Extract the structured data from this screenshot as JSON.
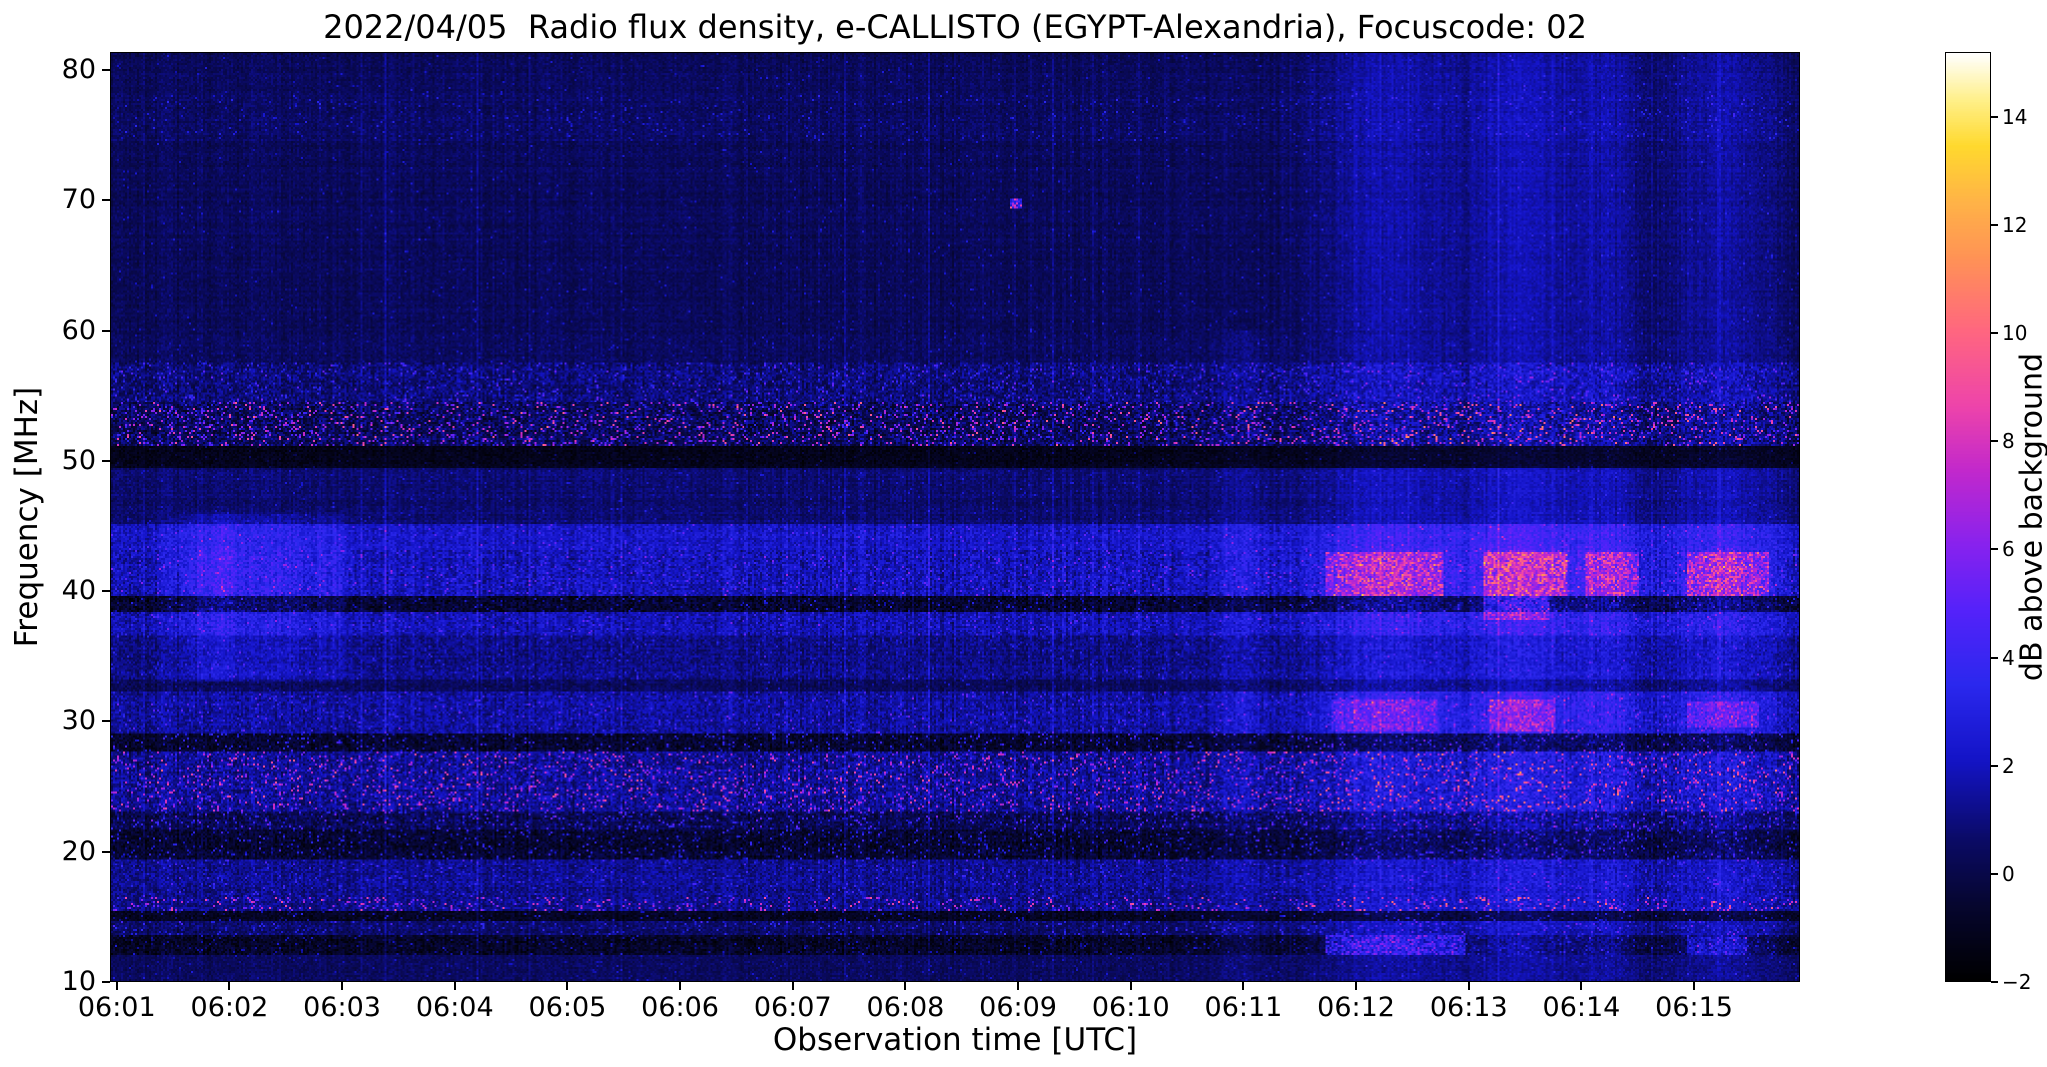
{
  "chart_data": {
    "type": "heatmap",
    "title": "2022/04/05  Radio flux density, e-CALLISTO (EGYPT-Alexandria), Focuscode: 02",
    "xlabel": "Observation time [UTC]",
    "ylabel": "Frequency [MHz]",
    "colorbar_label": "dB above background",
    "x_tick_labels": [
      "06:01",
      "06:02",
      "06:03",
      "06:04",
      "06:05",
      "06:06",
      "06:07",
      "06:08",
      "06:09",
      "06:10",
      "06:11",
      "06:12",
      "06:13",
      "06:14",
      "06:15"
    ],
    "x_tick_minutes": [
      1,
      2,
      3,
      4,
      5,
      6,
      7,
      8,
      9,
      10,
      11,
      12,
      13,
      14,
      15
    ],
    "x_axis_start_minutes_after_0600": 0.94,
    "x_axis_span_minutes": 15,
    "y_tick_values": [
      10,
      20,
      30,
      40,
      50,
      60,
      70,
      80
    ],
    "freq_range_mhz": [
      10,
      81.4
    ],
    "value_range_db": [
      -2,
      15.2
    ],
    "colorbar_tick_values": [
      -2,
      0,
      2,
      4,
      6,
      8,
      10,
      12,
      14
    ],
    "colorbar_tick_labels": [
      "−2",
      "0",
      "2",
      "4",
      "6",
      "8",
      "10",
      "12",
      "14"
    ],
    "colormap": "gnuplot2-like (black-blue-violet-pink-orange-yellow-white)",
    "colormap_stops": [
      [
        0.0,
        "#000000"
      ],
      [
        0.08,
        "#06062e"
      ],
      [
        0.15,
        "#0a0a64"
      ],
      [
        0.24,
        "#1414c8"
      ],
      [
        0.32,
        "#2b28ee"
      ],
      [
        0.4,
        "#5522fa"
      ],
      [
        0.47,
        "#8822ee"
      ],
      [
        0.55,
        "#c228cc"
      ],
      [
        0.62,
        "#ee44aa"
      ],
      [
        0.7,
        "#ff6680"
      ],
      [
        0.78,
        "#ff9355"
      ],
      [
        0.84,
        "#ffb347"
      ],
      [
        0.9,
        "#ffd92e"
      ],
      [
        0.95,
        "#fff08a"
      ],
      [
        1.0,
        "#ffffff"
      ]
    ],
    "render_seed": 1337,
    "grid_cols": 845,
    "grid_rows": 465,
    "bands": [
      {
        "f": [
          10.0,
          12.0
        ],
        "base": 0.4,
        "noise": 0.5,
        "sp": 0.02,
        "spmax": 2.0,
        "sens": 0.6,
        "ev": 0.8
      },
      {
        "f": [
          12.0,
          13.6
        ],
        "base": -0.8,
        "noise": 0.8,
        "sp": 0.05,
        "spmax": 3.0,
        "sens": 0.8,
        "ev": 1.6
      },
      {
        "f": [
          13.6,
          14.6
        ],
        "base": 0.6,
        "noise": 0.7,
        "sp": 0.06,
        "spmax": 3.5,
        "sens": 0.8,
        "ev": 1.2
      },
      {
        "f": [
          14.6,
          15.4
        ],
        "base": -1.0,
        "noise": 0.6,
        "sp": 0.05,
        "spmax": 4.0,
        "sens": 0.6,
        "ev": 0.8
      },
      {
        "f": [
          15.4,
          16.4
        ],
        "base": 1.2,
        "noise": 0.9,
        "sp": 0.1,
        "spmax": 7.5,
        "sens": 0.8,
        "ev": 1.0
      },
      {
        "f": [
          16.4,
          19.4
        ],
        "base": 1.2,
        "noise": 0.8,
        "sp": 0.05,
        "spmax": 3.0,
        "sens": 1.0,
        "ev": 1.0
      },
      {
        "f": [
          19.4,
          21.6
        ],
        "base": -0.6,
        "noise": 0.9,
        "sp": 0.08,
        "spmax": 4.5,
        "sens": 0.8,
        "ev": 1.0
      },
      {
        "f": [
          21.6,
          23.0
        ],
        "base": 0.2,
        "noise": 1.0,
        "sp": 0.08,
        "spmax": 5.0,
        "sens": 1.0,
        "ev": 1.0
      },
      {
        "f": [
          23.0,
          27.6
        ],
        "base": 1.3,
        "noise": 1.1,
        "sp": 0.1,
        "spmax": 7.5,
        "sens": 1.2,
        "ev": 1.2
      },
      {
        "f": [
          27.6,
          29.0
        ],
        "base": -0.7,
        "noise": 0.9,
        "sp": 0.07,
        "spmax": 5.0,
        "sens": 0.9,
        "ev": 1.0
      },
      {
        "f": [
          29.0,
          32.2
        ],
        "base": 1.5,
        "noise": 0.9,
        "sp": 0.04,
        "spmax": 3.5,
        "sens": 1.2,
        "ev": 1.8
      },
      {
        "f": [
          32.2,
          33.2
        ],
        "base": 0.3,
        "noise": 0.6,
        "sp": 0.02,
        "spmax": 2.0,
        "sens": 0.8,
        "ev": 1.0
      },
      {
        "f": [
          33.2,
          36.6
        ],
        "base": 1.1,
        "noise": 0.8,
        "sp": 0.03,
        "spmax": 2.5,
        "sens": 1.0,
        "ev": 1.2
      },
      {
        "f": [
          36.6,
          38.4
        ],
        "base": 1.8,
        "noise": 0.9,
        "sp": 0.04,
        "spmax": 3.0,
        "sens": 1.4,
        "ev": 1.5
      },
      {
        "f": [
          38.4,
          39.6
        ],
        "base": -0.6,
        "noise": 1.0,
        "sp": 0.05,
        "spmax": 3.5,
        "sens": 1.0,
        "ev": 1.5
      },
      {
        "f": [
          39.6,
          43.2
        ],
        "base": 1.9,
        "noise": 1.0,
        "sp": 0.05,
        "spmax": 3.5,
        "sens": 1.5,
        "ev": 2.0
      },
      {
        "f": [
          43.2,
          45.2
        ],
        "base": 2.2,
        "noise": 0.8,
        "sp": 0.03,
        "spmax": 3.0,
        "sens": 1.3,
        "ev": 1.5
      },
      {
        "f": [
          45.2,
          49.4
        ],
        "base": 0.7,
        "noise": 0.5,
        "sp": 0.02,
        "spmax": 2.0,
        "sens": 0.9,
        "ev": 1.0
      },
      {
        "f": [
          49.4,
          51.2
        ],
        "base": -1.2,
        "noise": 0.5,
        "sp": 0.02,
        "spmax": 2.0,
        "sens": 0.4,
        "ev": 0.5
      },
      {
        "f": [
          51.2,
          54.6
        ],
        "base": 0.3,
        "noise": 1.3,
        "sp": 0.12,
        "spmax": 8.5,
        "sens": 0.8,
        "ev": 1.0
      },
      {
        "f": [
          54.6,
          57.6
        ],
        "base": 0.8,
        "noise": 1.0,
        "sp": 0.07,
        "spmax": 4.0,
        "sens": 0.9,
        "ev": 1.0
      },
      {
        "f": [
          57.6,
          60.0
        ],
        "base": 0.4,
        "noise": 0.5,
        "sp": 0.02,
        "spmax": 2.0,
        "sens": 0.8,
        "ev": 0.9
      },
      {
        "f": [
          60.0,
          74.6
        ],
        "base": 0.35,
        "noise": 0.45,
        "sp": 0.012,
        "spmax": 2.2,
        "sens": 0.8,
        "ev": 1.0
      },
      {
        "f": [
          74.6,
          78.2
        ],
        "base": 0.5,
        "noise": 0.5,
        "sp": 0.035,
        "spmax": 2.6,
        "sens": 0.85,
        "ev": 1.0
      },
      {
        "f": [
          78.2,
          81.4
        ],
        "base": 0.35,
        "noise": 0.45,
        "sp": 0.012,
        "spmax": 2.2,
        "sens": 0.8,
        "ev": 1.0
      }
    ],
    "vertical_events": [
      {
        "t": 1.9,
        "w": 0.25,
        "boost": 1.2,
        "f": [
          33,
          46
        ]
      },
      {
        "t": 2.5,
        "w": 0.15,
        "boost": 0.8,
        "f": [
          33,
          46
        ]
      },
      {
        "t": 2.9,
        "w": 0.12,
        "boost": 0.7,
        "f": [
          33,
          46
        ]
      },
      {
        "t": 11.0,
        "w": 0.15,
        "boost": 0.6,
        "f": [
          10,
          60
        ]
      },
      {
        "t": 12.3,
        "w": 0.45,
        "boost": 1.4,
        "f": [
          10,
          81.4
        ]
      },
      {
        "t": 13.45,
        "w": 0.3,
        "boost": 1.5,
        "f": [
          10,
          81.4
        ]
      },
      {
        "t": 14.2,
        "w": 0.22,
        "boost": 1.2,
        "f": [
          10,
          81.4
        ]
      },
      {
        "t": 15.25,
        "w": 0.35,
        "boost": 1.3,
        "f": [
          10,
          81.4
        ]
      }
    ],
    "bright_patches": [
      {
        "t": [
          11.75,
          12.75
        ],
        "f": [
          39.8,
          43.0
        ],
        "level": 5.5
      },
      {
        "t": [
          13.15,
          13.85
        ],
        "f": [
          39.8,
          43.0
        ],
        "level": 6.0
      },
      {
        "t": [
          13.15,
          13.7
        ],
        "f": [
          38.0,
          39.6
        ],
        "level": 4.5
      },
      {
        "t": [
          14.05,
          14.5
        ],
        "f": [
          39.8,
          43.0
        ],
        "level": 5.0
      },
      {
        "t": [
          14.95,
          15.65
        ],
        "f": [
          39.8,
          43.0
        ],
        "level": 5.5
      },
      {
        "t": [
          11.8,
          12.7
        ],
        "f": [
          29.4,
          31.6
        ],
        "level": 3.5
      },
      {
        "t": [
          13.2,
          13.75
        ],
        "f": [
          29.4,
          31.6
        ],
        "level": 4.0
      },
      {
        "t": [
          14.95,
          15.55
        ],
        "f": [
          29.7,
          31.4
        ],
        "level": 3.5
      },
      {
        "t": [
          11.75,
          12.95
        ],
        "f": [
          12.2,
          13.5
        ],
        "level": 5.0
      },
      {
        "t": [
          14.95,
          15.45
        ],
        "f": [
          12.3,
          13.3
        ],
        "level": 3.0
      },
      {
        "t": [
          8.93,
          9.0
        ],
        "f": [
          69.7,
          70.1
        ],
        "level": 9.5
      }
    ]
  }
}
